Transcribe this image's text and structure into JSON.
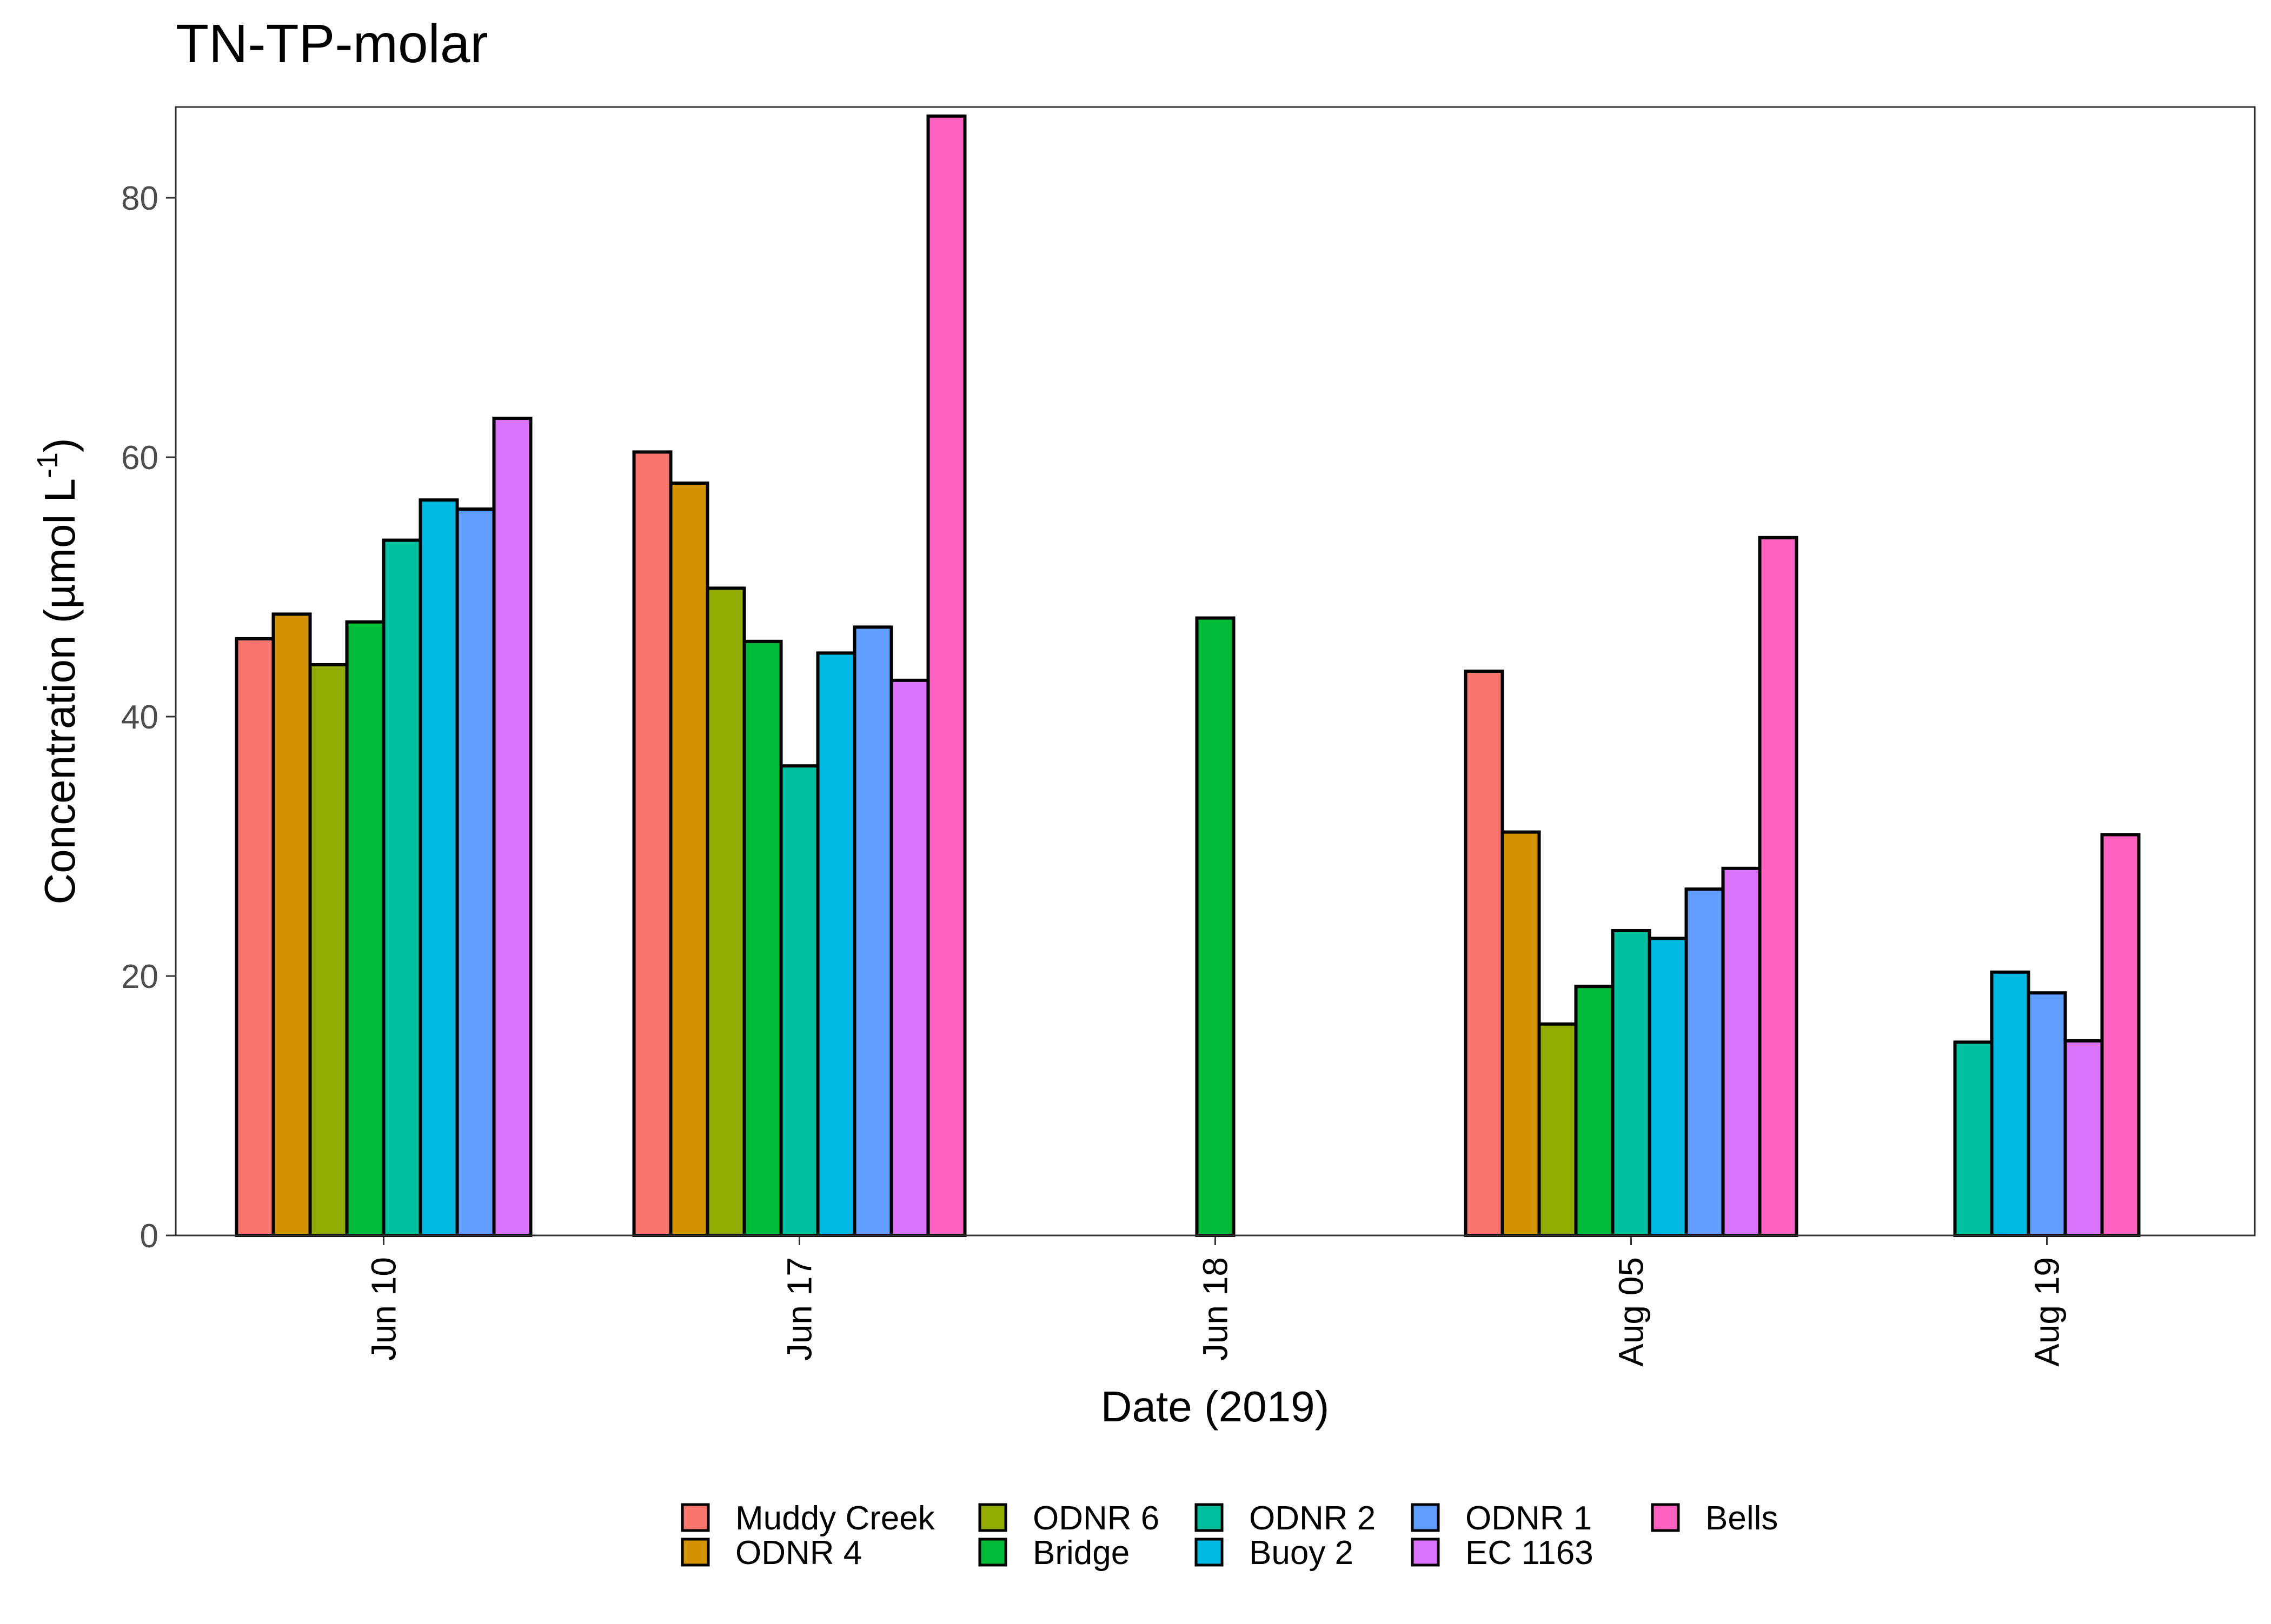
{
  "chart_data": {
    "type": "bar",
    "title": "TN-TP-molar",
    "xlabel": "Date (2019)",
    "ylabel_main": "Concentration (µmol L",
    "ylabel_sup": "-1",
    "ylabel_close": ")",
    "ylim": [
      0,
      87
    ],
    "yticks": [
      0,
      20,
      40,
      60,
      80
    ],
    "grid": false,
    "legend_position": "bottom",
    "categories": [
      "Jun 10",
      "Jun 17",
      "Jun 18",
      "Aug 05",
      "Aug 19"
    ],
    "series": [
      {
        "name": "Muddy Creek",
        "color": "#F8766D",
        "values": [
          46.0,
          60.4,
          null,
          43.5,
          null
        ]
      },
      {
        "name": "ODNR 4",
        "color": "#D39200",
        "values": [
          47.9,
          58.0,
          null,
          31.1,
          null
        ]
      },
      {
        "name": "ODNR 6",
        "color": "#93AA00",
        "values": [
          44.0,
          49.9,
          null,
          16.3,
          null
        ]
      },
      {
        "name": "Bridge",
        "color": "#00BA38",
        "values": [
          47.3,
          45.8,
          47.6,
          19.2,
          null
        ]
      },
      {
        "name": "ODNR 2",
        "color": "#00C19F",
        "values": [
          53.6,
          36.2,
          null,
          23.5,
          14.9
        ]
      },
      {
        "name": "Buoy 2",
        "color": "#00B9E3",
        "values": [
          56.7,
          44.9,
          null,
          22.9,
          20.3
        ]
      },
      {
        "name": "ODNR 1",
        "color": "#619CFF",
        "values": [
          56.0,
          46.9,
          null,
          26.7,
          18.7
        ]
      },
      {
        "name": "EC 1163",
        "color": "#DB72FB",
        "values": [
          63.0,
          42.8,
          null,
          28.3,
          15.0
        ]
      },
      {
        "name": "Bells",
        "color": "#FF61C3",
        "values": [
          null,
          86.3,
          null,
          53.8,
          30.9
        ]
      }
    ]
  }
}
